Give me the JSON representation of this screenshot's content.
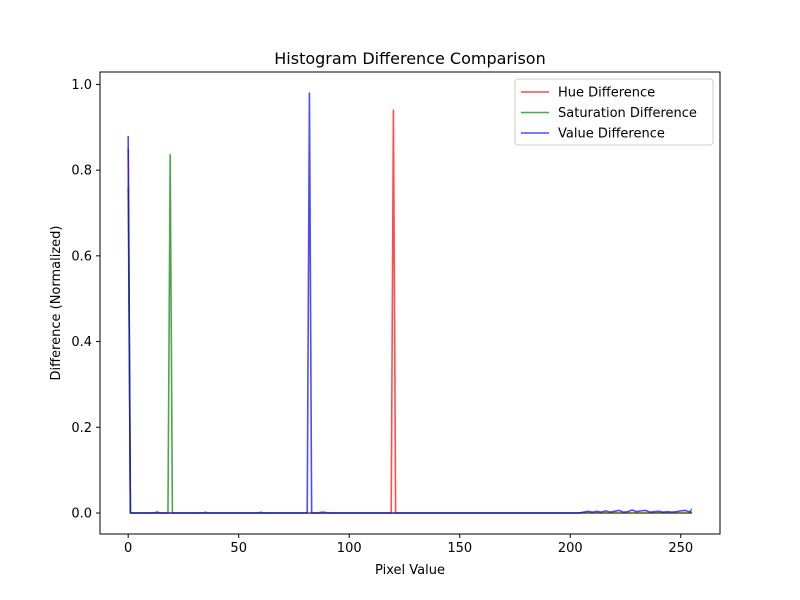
{
  "chart_data": {
    "type": "line",
    "title": "Histogram Difference Comparison",
    "xlabel": "Pixel Value",
    "ylabel": "Difference (Normalized)",
    "xlim": [
      -12.75,
      267.75
    ],
    "ylim": [
      -0.049,
      1.029
    ],
    "xticks": [
      0,
      50,
      100,
      150,
      200,
      250
    ],
    "yticks": [
      0.0,
      0.2,
      0.4,
      0.6,
      0.8,
      1.0
    ],
    "xtick_labels": [
      "0",
      "50",
      "100",
      "150",
      "200",
      "250"
    ],
    "ytick_labels": [
      "0.0",
      "0.2",
      "0.4",
      "0.6",
      "0.8",
      "1.0"
    ],
    "legend_position": "top-right",
    "grid": false,
    "series": [
      {
        "name": "Hue Difference",
        "color": "#ff0000",
        "points": [
          [
            0,
            0.85
          ],
          [
            1,
            0.0
          ],
          [
            12,
            0.0
          ],
          [
            13,
            0.003
          ],
          [
            14,
            0.0
          ],
          [
            34,
            0.0
          ],
          [
            35,
            0.002
          ],
          [
            36,
            0.0
          ],
          [
            59,
            0.0
          ],
          [
            60,
            0.002
          ],
          [
            61,
            0.0
          ],
          [
            86,
            0.0
          ],
          [
            87,
            0.002
          ],
          [
            89,
            0.002
          ],
          [
            90,
            0.0
          ],
          [
            119,
            0.0
          ],
          [
            120,
            0.94
          ],
          [
            121,
            0.0
          ],
          [
            255,
            0.0
          ]
        ]
      },
      {
        "name": "Saturation Difference",
        "color": "#008000",
        "points": [
          [
            0,
            0.76
          ],
          [
            1,
            0.0
          ],
          [
            18,
            0.0
          ],
          [
            19,
            0.836
          ],
          [
            20,
            0.0
          ],
          [
            254,
            0.0
          ],
          [
            255,
            0.01
          ]
        ]
      },
      {
        "name": "Value Difference",
        "color": "#0000ff",
        "points": [
          [
            0,
            0.88
          ],
          [
            1,
            0.0
          ],
          [
            81,
            0.0
          ],
          [
            82,
            0.98
          ],
          [
            83,
            0.0
          ],
          [
            204,
            0.0
          ],
          [
            206,
            0.002
          ],
          [
            208,
            0.004
          ],
          [
            210,
            0.002
          ],
          [
            212,
            0.004
          ],
          [
            214,
            0.002
          ],
          [
            216,
            0.005
          ],
          [
            218,
            0.002
          ],
          [
            220,
            0.004
          ],
          [
            222,
            0.006
          ],
          [
            224,
            0.002
          ],
          [
            226,
            0.003
          ],
          [
            228,
            0.007
          ],
          [
            230,
            0.003
          ],
          [
            232,
            0.005
          ],
          [
            234,
            0.006
          ],
          [
            236,
            0.002
          ],
          [
            238,
            0.003
          ],
          [
            240,
            0.004
          ],
          [
            242,
            0.002
          ],
          [
            244,
            0.003
          ],
          [
            246,
            0.002
          ],
          [
            248,
            0.003
          ],
          [
            250,
            0.005
          ],
          [
            252,
            0.006
          ],
          [
            253,
            0.004
          ],
          [
            254,
            0.003
          ],
          [
            255,
            0.0
          ]
        ]
      }
    ]
  }
}
